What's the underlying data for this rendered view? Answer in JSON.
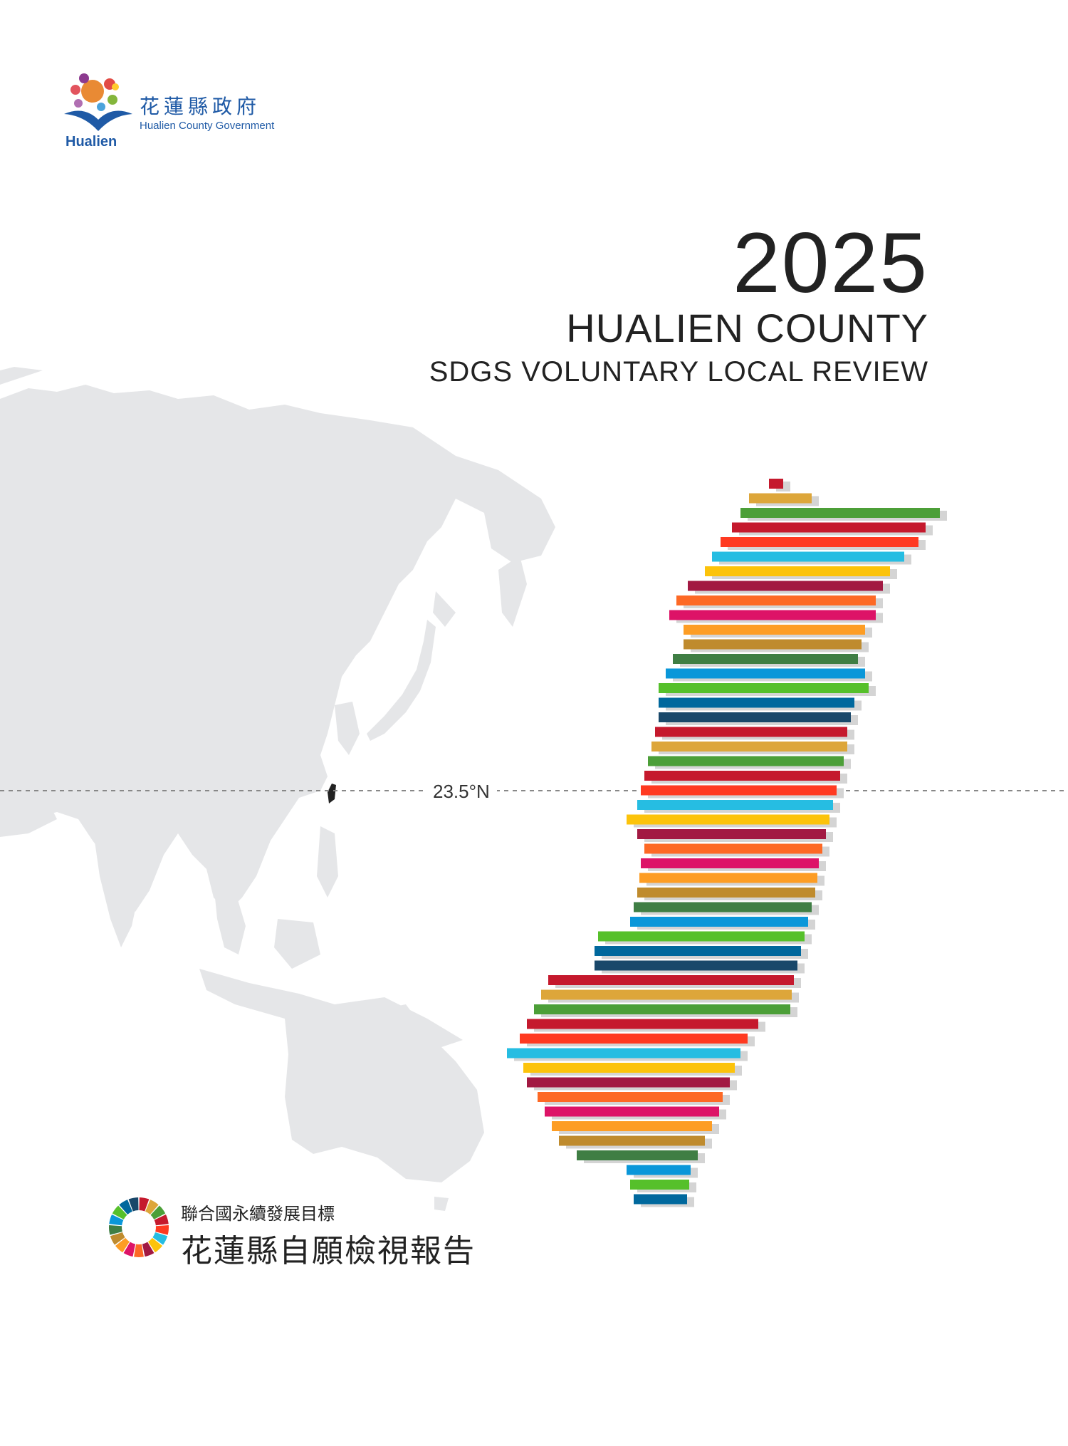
{
  "logo": {
    "word": "Hualien",
    "name_cn": "花蓮縣政府",
    "name_en": "Hualien County Government"
  },
  "title": {
    "year": "2025",
    "county": "HUALIEN COUNTY",
    "review": "SDGS VOLUNTARY LOCAL REVIEW"
  },
  "map": {
    "latitude_label": "23.5°N"
  },
  "sdg": {
    "subtitle": "聯合國永續發展目標",
    "main_title": "花蓮縣自願檢視報告"
  },
  "colors": {
    "sdg_palette": [
      "#c5192d",
      "#dda63a",
      "#4c9f38",
      "#c5192d",
      "#ff3a21",
      "#26bde2",
      "#fcc30b",
      "#a21942",
      "#fd6925",
      "#dd1367",
      "#fd9d24",
      "#bf8b2e",
      "#3f7e44",
      "#0a97d9",
      "#56c02b",
      "#00689d",
      "#19486a"
    ],
    "map_gray": "#e5e6e8",
    "text": "#222222",
    "logo_blue": "#1f5aa6"
  }
}
